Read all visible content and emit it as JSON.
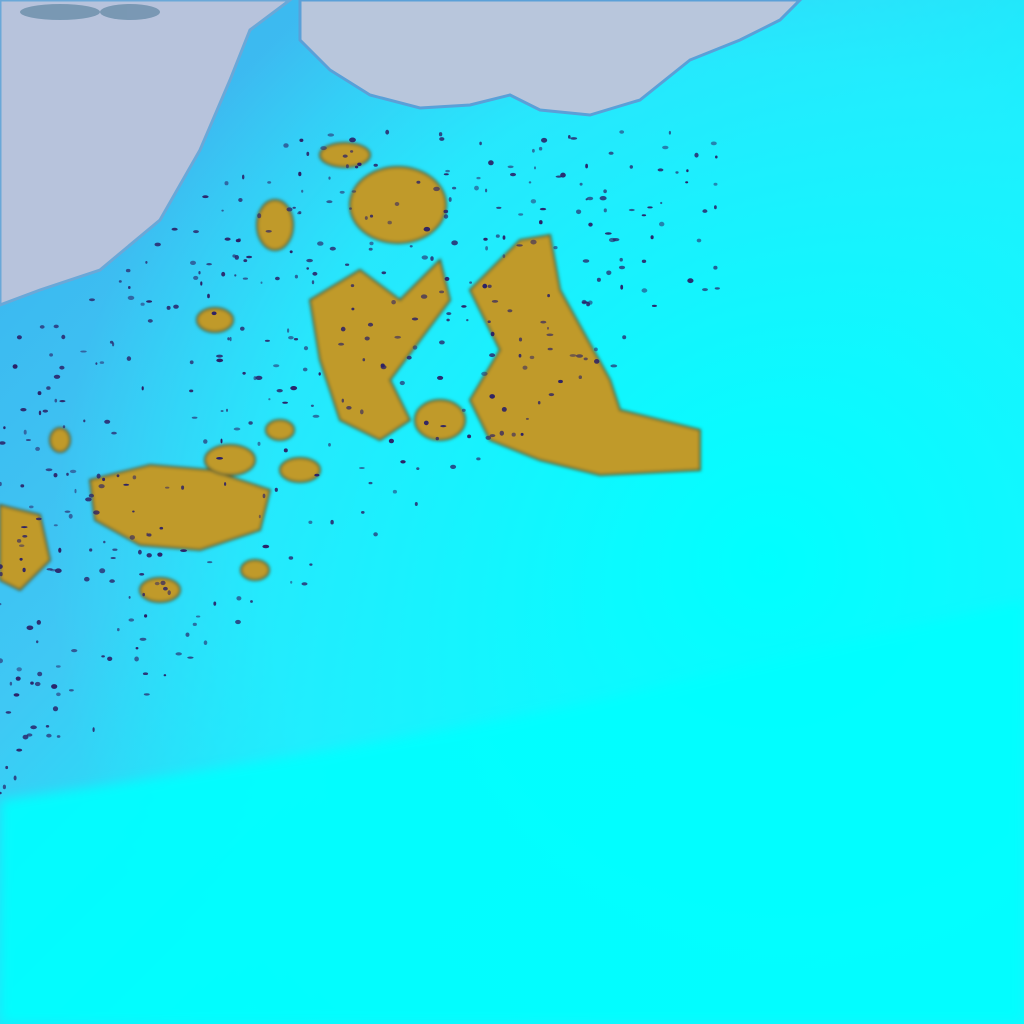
{
  "image": {
    "kind": "false-color satellite imagery",
    "colors": {
      "land": "#b9c4dc",
      "ice_coastal": "#3ab4f0",
      "ice_mid": "#50d8f8",
      "ice_bright": "#00ffff",
      "melt_ponds": "#c09a2c",
      "dark_specks": "#2a1f66"
    }
  }
}
